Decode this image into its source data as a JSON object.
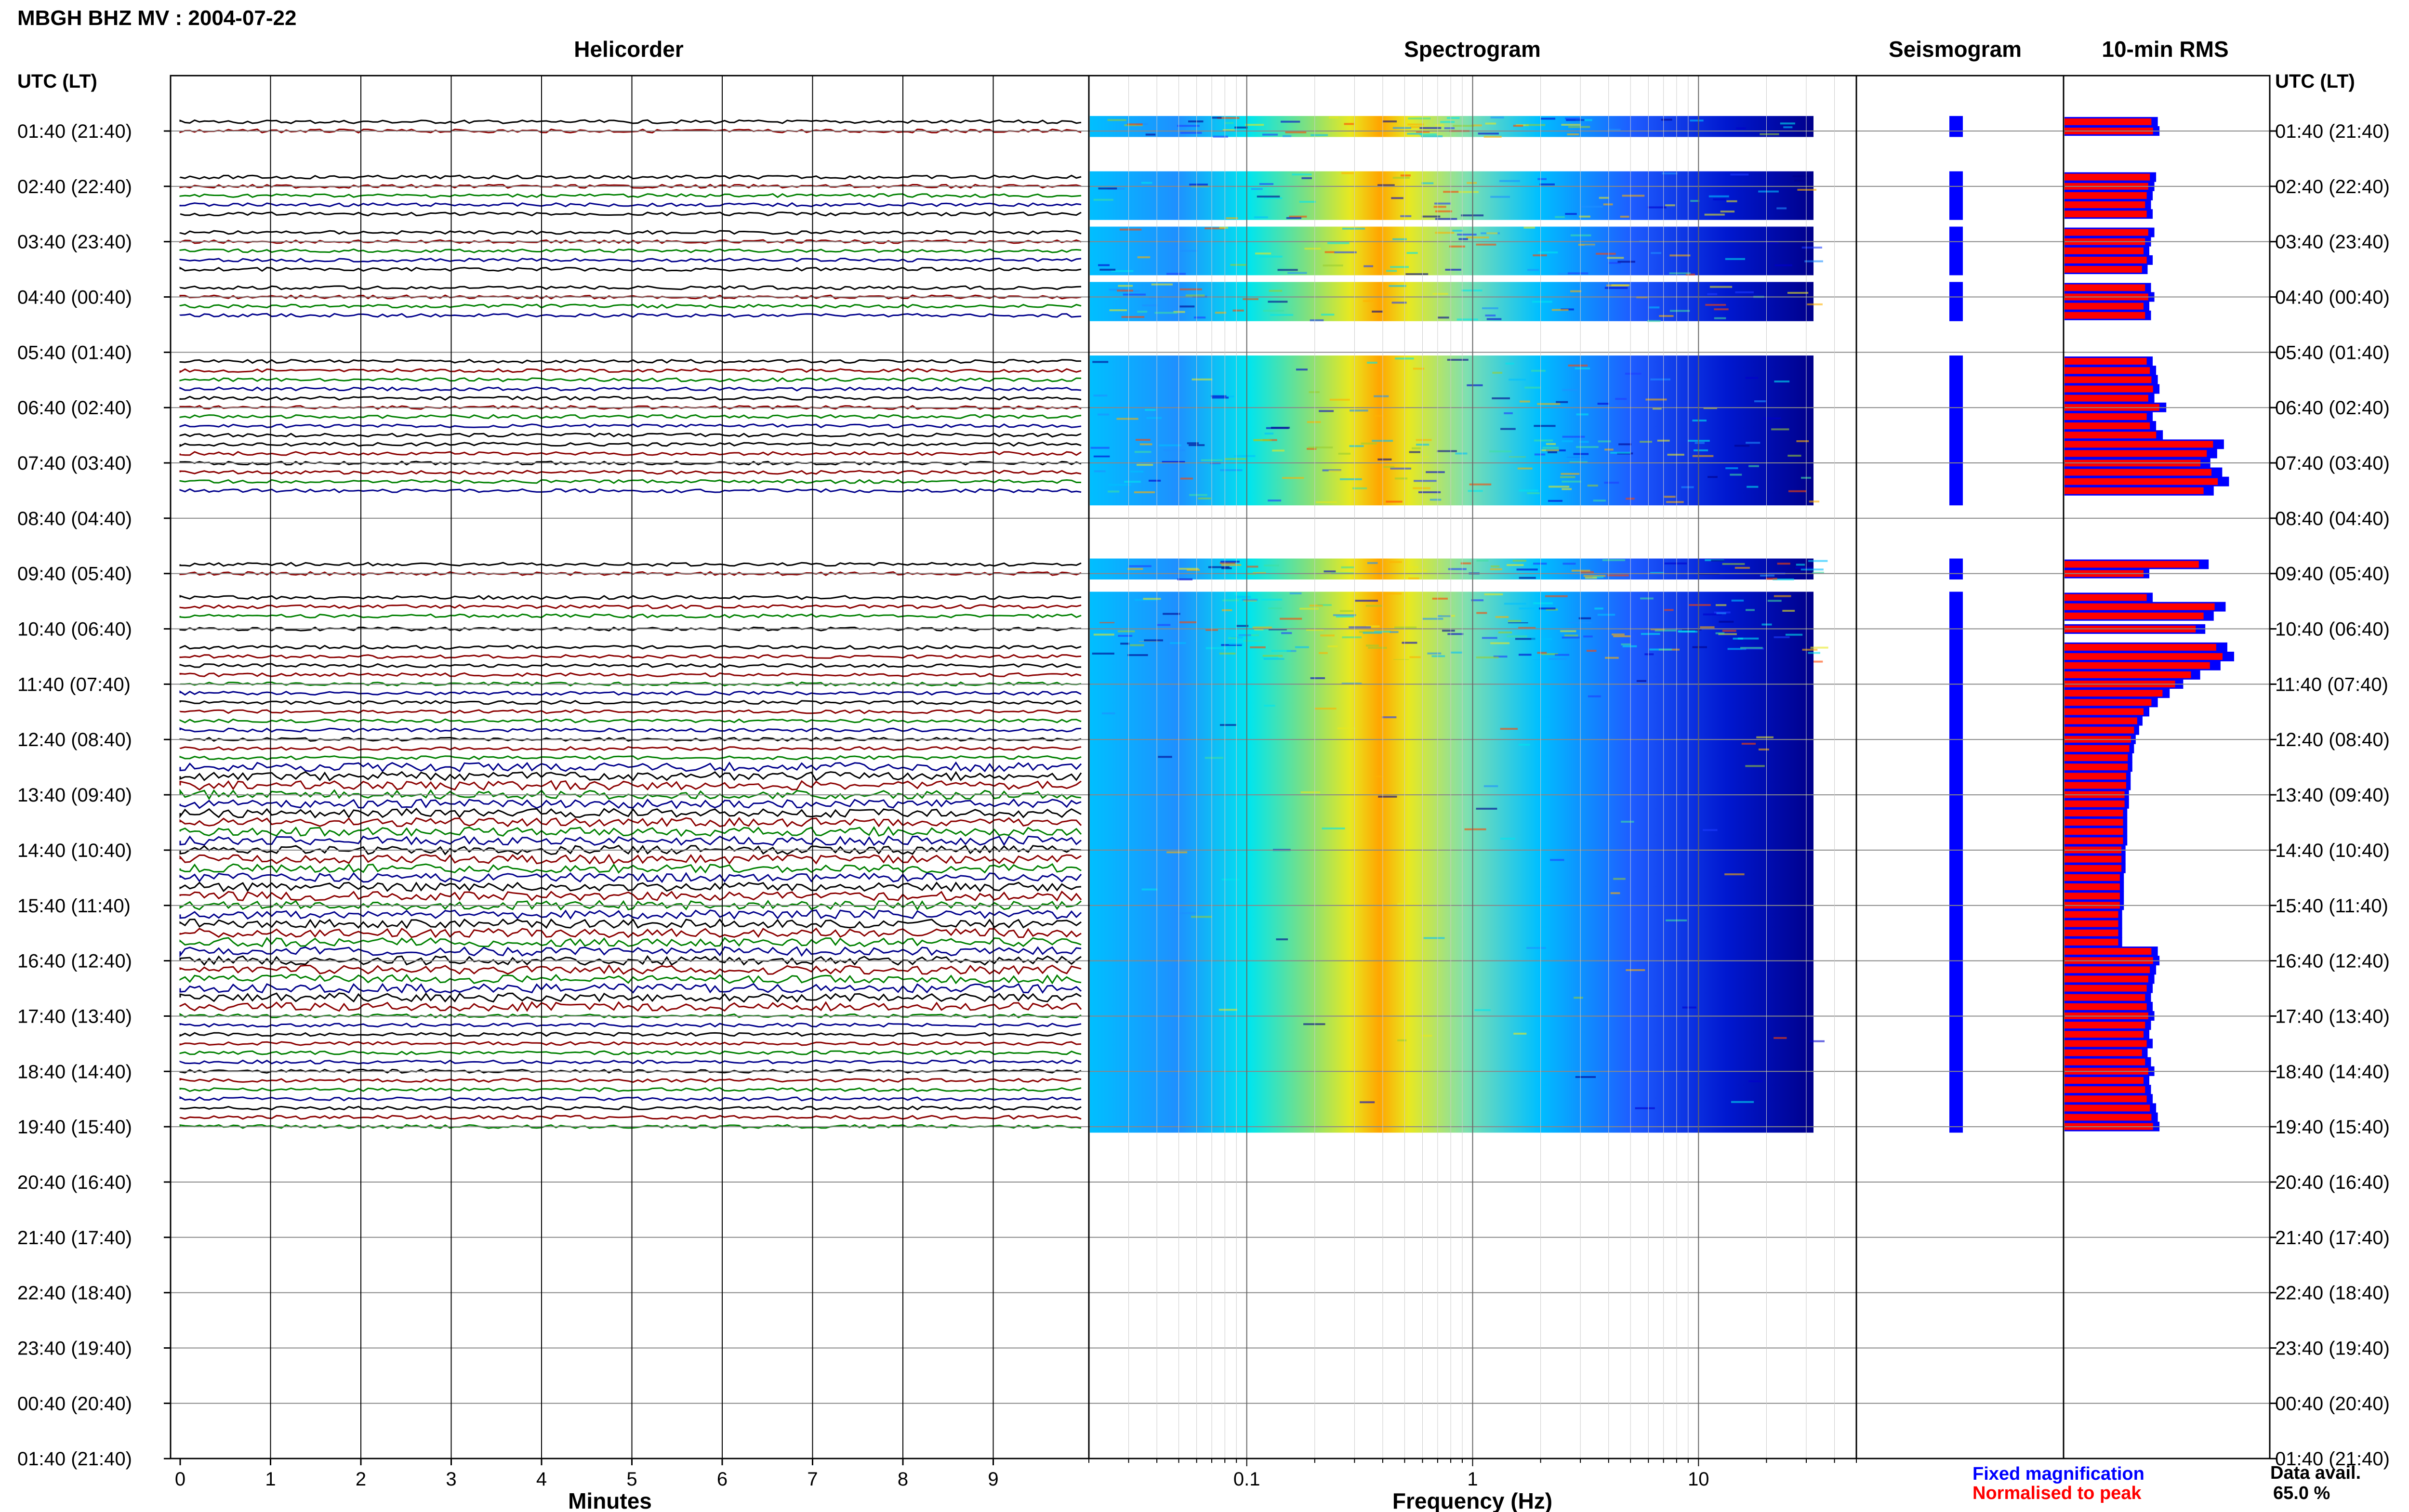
{
  "window_title": "MBGH BHZ MV : 2004-07-22",
  "panels": {
    "helicorder": "Helicorder",
    "spectrogram": "Spectrogram",
    "seismogram": "Seismogram",
    "rms": "10-min RMS"
  },
  "utc_header": "UTC (LT)",
  "time_labels": [
    "01:40 (21:40)",
    "02:40 (22:40)",
    "03:40 (23:40)",
    "04:40 (00:40)",
    "05:40 (01:40)",
    "06:40 (02:40)",
    "07:40 (03:40)",
    "08:40 (04:40)",
    "09:40 (05:40)",
    "10:40 (06:40)",
    "11:40 (07:40)",
    "12:40 (08:40)",
    "13:40 (09:40)",
    "14:40 (10:40)",
    "15:40 (11:40)",
    "16:40 (12:40)",
    "17:40 (13:40)",
    "18:40 (14:40)",
    "19:40 (15:40)",
    "20:40 (16:40)",
    "21:40 (17:40)",
    "22:40 (18:40)",
    "23:40 (19:40)",
    "00:40 (20:40)",
    "01:40 (21:40)"
  ],
  "x_axes": {
    "helicorder_label": "Minutes",
    "helicorder_ticks": [
      "0",
      "1",
      "2",
      "3",
      "4",
      "5",
      "6",
      "7",
      "8",
      "9"
    ],
    "spectrogram_label": "Frequency (Hz)",
    "spectrogram_ticks": [
      "0.1",
      "1",
      "10"
    ]
  },
  "legend": {
    "fixed": "Fixed magnification",
    "normalised": "Normalised to peak",
    "data_avail_label": "Data avail.",
    "data_avail_value": "65.0 %"
  },
  "colors": {
    "trace_cycle": [
      "#000000",
      "#8b0000",
      "#008000",
      "#00008b"
    ],
    "fixed": "#0000ff",
    "normalised": "#ff0000"
  },
  "chart_data": {
    "type": "heatmap",
    "station": "MBGH BHZ MV",
    "date": "2004-07-22",
    "helicorder_minutes_range": [
      0,
      10
    ],
    "spectrogram_frequency_range_hz": [
      0.02,
      50
    ],
    "spectrogram_scale": "log",
    "data_availability_percent": 65.0,
    "segments_hours_utc": [
      [
        1.5,
        1.67
      ],
      [
        2.5,
        3.17
      ],
      [
        3.5,
        4.17
      ],
      [
        4.5,
        5.0
      ],
      [
        5.83,
        7.17
      ],
      [
        7.33,
        7.5
      ],
      [
        7.67,
        8.33
      ],
      [
        9.5,
        9.67
      ],
      [
        10.1,
        10.5
      ],
      [
        10.67,
        10.83
      ],
      [
        11.0,
        11.17
      ],
      [
        11.33,
        19.67
      ]
    ],
    "rms_fixed_relative": [
      0.55,
      0.56,
      0.54,
      0.53,
      0.52,
      0.51,
      0.52,
      0.53,
      0.51,
      0.5,
      0.52,
      0.49,
      0.51,
      0.53,
      0.5,
      0.51,
      0.52,
      0.54,
      0.55,
      0.56,
      0.53,
      0.6,
      0.52,
      0.54,
      0.58,
      0.94,
      0.9,
      0.86,
      0.93,
      0.97,
      0.88,
      0.85,
      0.5,
      0.52,
      0.95,
      0.88,
      0.83,
      0.96,
      1.0,
      0.92,
      0.8,
      0.7,
      0.62,
      0.55,
      0.5,
      0.46,
      0.44,
      0.42,
      0.41,
      0.4,
      0.4,
      0.39,
      0.39,
      0.38,
      0.38,
      0.37,
      0.37,
      0.37,
      0.37,
      0.36,
      0.36,
      0.36,
      0.35,
      0.35,
      0.35,
      0.35,
      0.34,
      0.34,
      0.34,
      0.34
    ]
  }
}
